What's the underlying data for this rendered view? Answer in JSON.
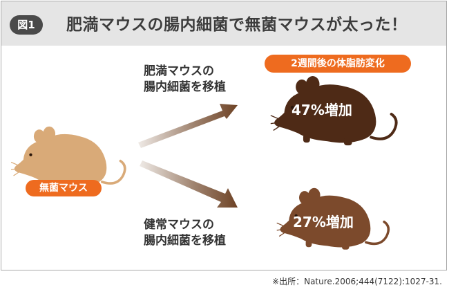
{
  "figure_label": "図1",
  "title": "肥満マウスの腸内細菌で無菌マウスが太った！",
  "germ_free_label": "無菌マウス",
  "after_caption": "2週間後の体脂肪変化",
  "paths": [
    {
      "line1": "肥満マウスの",
      "line2": "腸内細菌を移植",
      "result": "47%増加",
      "increase_percent": 47,
      "mouse_color": "#4e2a16"
    },
    {
      "line1": "健常マウスの",
      "line2": "腸内細菌を移植",
      "result": "27%増加",
      "increase_percent": 27,
      "mouse_color": "#7c4a2c"
    }
  ],
  "germ_free_mouse_color": "#d9aa78",
  "accent_color": "#ee6b1f",
  "source": "※出所：Nature.2006;444(7122):1027-31."
}
